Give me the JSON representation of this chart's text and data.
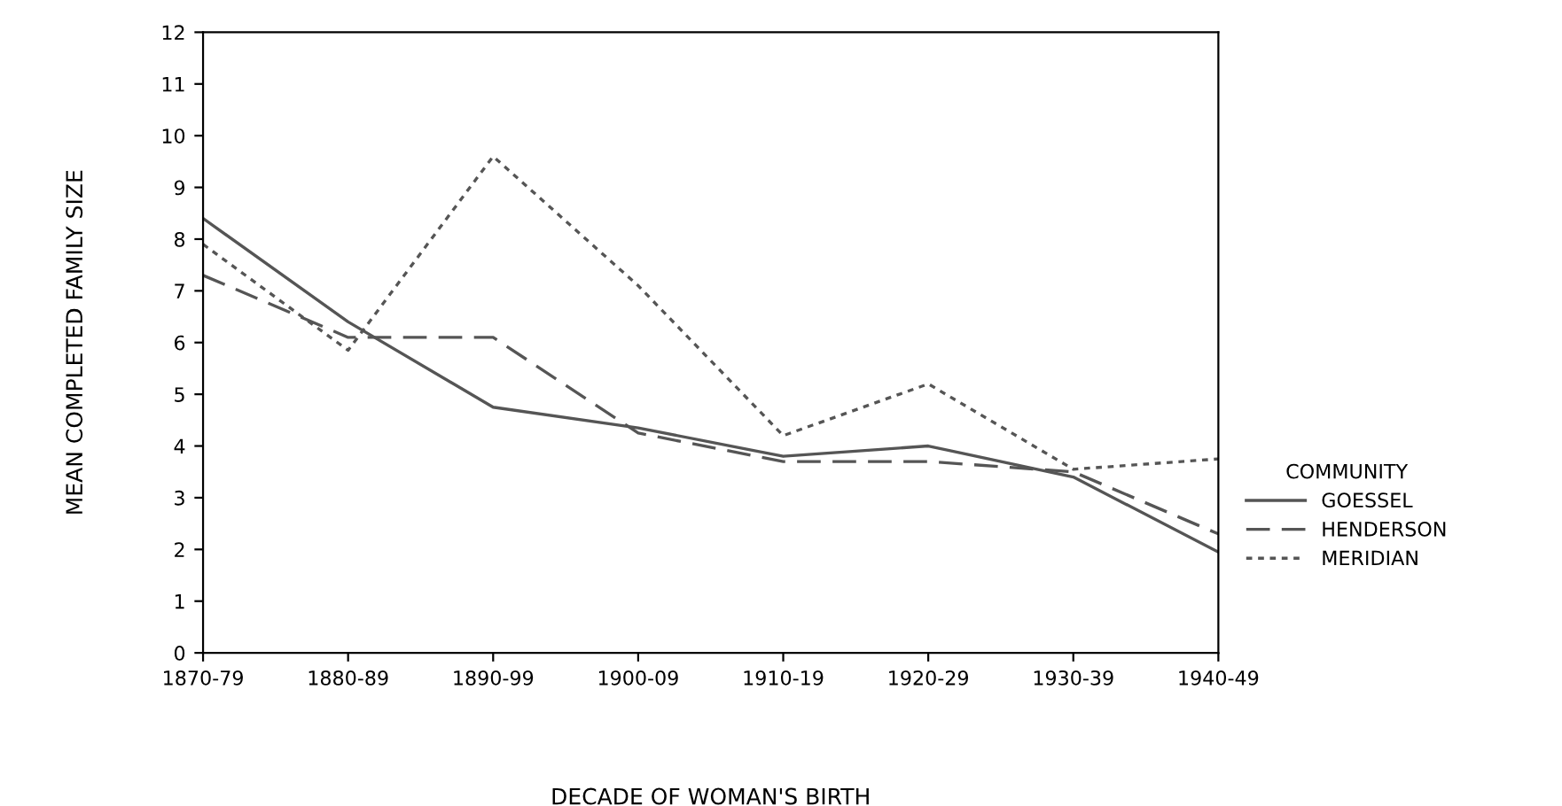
{
  "chart_data": {
    "type": "line",
    "xlabel": "DECADE OF WOMAN'S BIRTH",
    "ylabel": "MEAN COMPLETED FAMILY SIZE",
    "legend_title": "COMMUNITY",
    "categories": [
      "1870-79",
      "1880-89",
      "1890-99",
      "1900-09",
      "1910-19",
      "1920-29",
      "1930-39",
      "1940-49"
    ],
    "series": [
      {
        "name": "GOESSEL",
        "color": "#555555",
        "line_style": "solid",
        "values": [
          8.4,
          6.4,
          4.75,
          4.35,
          3.8,
          4.0,
          3.4,
          1.95
        ]
      },
      {
        "name": "HENDERSON",
        "color": "#555555",
        "line_style": "dashed",
        "values": [
          7.3,
          6.1,
          6.1,
          4.25,
          3.7,
          3.7,
          3.5,
          2.3
        ]
      },
      {
        "name": "MERIDIAN",
        "color": "#555555",
        "line_style": "dotted",
        "values": [
          7.9,
          5.85,
          9.6,
          7.1,
          4.2,
          5.2,
          3.55,
          3.75
        ]
      }
    ],
    "ylim": [
      0,
      12
    ],
    "yticks": [
      0,
      1,
      2,
      3,
      4,
      5,
      6,
      7,
      8,
      9,
      10,
      11,
      12
    ],
    "grid": false,
    "legend": "right",
    "marker": "none"
  }
}
